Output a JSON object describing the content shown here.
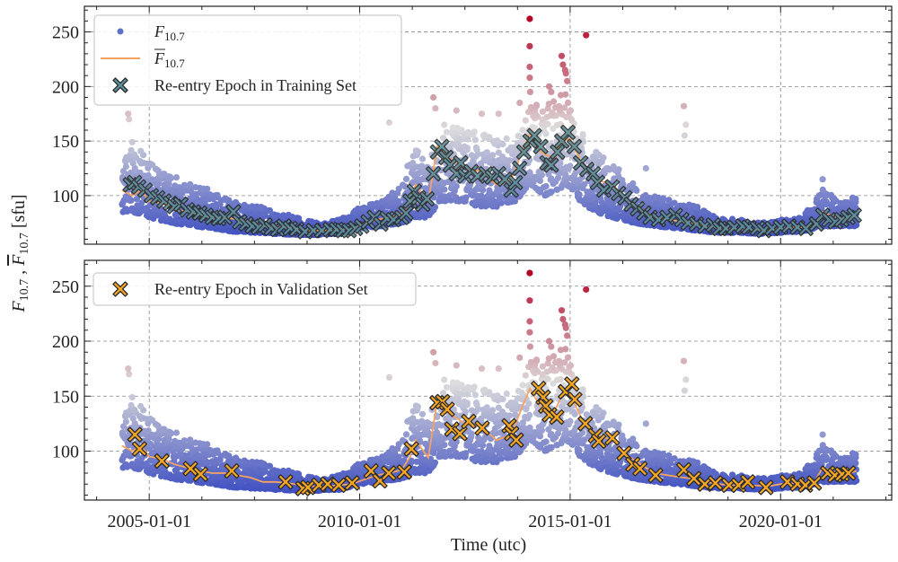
{
  "chart_data": [
    {
      "type": "scatter",
      "panel": "top",
      "xlabel": "",
      "ylabel": "F10.7 , F̄10.7 [sfu]",
      "xlim": [
        "2003-06-17",
        "2022-08-21"
      ],
      "ylim": [
        55.5,
        273.5
      ],
      "grid": true,
      "legend_placement": "top-left",
      "legend": [
        {
          "label_main": "F",
          "label_sub": "10.7",
          "marker": "dot"
        },
        {
          "label_main": "F",
          "label_sub": "10.7",
          "overline": true,
          "marker": "line",
          "color": "#f4a261"
        },
        {
          "label": "Re-entry Epoch in Training Set",
          "marker": "x",
          "color": "#5b8f99"
        }
      ],
      "series_ref": [
        "f107_daily",
        "f107_mean",
        "training_reentries"
      ]
    },
    {
      "type": "scatter",
      "panel": "bottom",
      "xlabel": "Time (utc)",
      "ylim": [
        55.5,
        273.5
      ],
      "grid": true,
      "legend_placement": "top-left",
      "legend": [
        {
          "label": "Re-entry Epoch in Validation Set",
          "marker": "x",
          "color": "#f5a623"
        }
      ],
      "series_ref": [
        "f107_daily",
        "f107_mean",
        "validation_reentries"
      ]
    }
  ],
  "axes": {
    "ylabel_main": "F",
    "ylabel_sub": "10.7",
    "ylabel_sep": " , ",
    "ylabel_unit": " [sfu]",
    "xlabel": "Time (utc)",
    "xticks": [
      {
        "year": 2005,
        "label": "2005-01-01"
      },
      {
        "year": 2010,
        "label": "2010-01-01"
      },
      {
        "year": 2015,
        "label": "2015-01-01"
      },
      {
        "year": 2020,
        "label": "2020-01-01"
      }
    ],
    "yticks": [
      100,
      150,
      200,
      250
    ]
  },
  "legend_top": {
    "f107_main": "F",
    "f107_sub": "10.7",
    "mean_main": "F",
    "mean_sub": "10.7",
    "training_label": "Re-entry Epoch in Training Set"
  },
  "legend_bottom": {
    "validation_label": "Re-entry Epoch in Validation Set"
  },
  "colors": {
    "mean_line": "#f4a261",
    "training_marker": "#5b8f99",
    "validation_marker": "#f5a623",
    "colormap_low": "#3b4cc0",
    "colormap_mid": "#dddcdc",
    "colormap_high": "#b40426"
  },
  "series": {
    "f107_daily_envelope": [
      [
        2004.35,
        85,
        135
      ],
      [
        2004.6,
        85,
        150
      ],
      [
        2005.0,
        80,
        130
      ],
      [
        2005.5,
        75,
        120
      ],
      [
        2006.0,
        72,
        110
      ],
      [
        2006.5,
        70,
        105
      ],
      [
        2007.0,
        67,
        95
      ],
      [
        2007.5,
        66,
        92
      ],
      [
        2008.0,
        65,
        85
      ],
      [
        2008.5,
        64,
        80
      ],
      [
        2009.0,
        64,
        75
      ],
      [
        2009.5,
        65,
        78
      ],
      [
        2010.0,
        70,
        90
      ],
      [
        2010.5,
        72,
        95
      ],
      [
        2011.0,
        75,
        110
      ],
      [
        2011.3,
        80,
        150
      ],
      [
        2011.6,
        80,
        125
      ],
      [
        2011.9,
        95,
        165
      ],
      [
        2012.3,
        95,
        165
      ],
      [
        2012.8,
        90,
        160
      ],
      [
        2013.3,
        90,
        155
      ],
      [
        2013.7,
        95,
        150
      ],
      [
        2014.0,
        110,
        185
      ],
      [
        2014.4,
        100,
        185
      ],
      [
        2014.9,
        110,
        195
      ],
      [
        2015.2,
        95,
        165
      ],
      [
        2015.6,
        85,
        140
      ],
      [
        2016.0,
        80,
        130
      ],
      [
        2016.5,
        75,
        110
      ],
      [
        2017.0,
        72,
        100
      ],
      [
        2017.5,
        70,
        95
      ],
      [
        2018.0,
        68,
        90
      ],
      [
        2018.5,
        66,
        80
      ],
      [
        2019.0,
        66,
        78
      ],
      [
        2019.5,
        65,
        75
      ],
      [
        2020.0,
        66,
        78
      ],
      [
        2020.5,
        67,
        80
      ],
      [
        2020.8,
        70,
        95
      ],
      [
        2021.0,
        72,
        110
      ],
      [
        2021.4,
        72,
        95
      ],
      [
        2021.8,
        72,
        100
      ]
    ],
    "f107_outliers": [
      [
        2004.5,
        175
      ],
      [
        2004.52,
        170
      ],
      [
        2010.7,
        167
      ],
      [
        2011.75,
        190
      ],
      [
        2011.8,
        180
      ],
      [
        2012.3,
        178
      ],
      [
        2012.9,
        175
      ],
      [
        2013.3,
        175
      ],
      [
        2013.8,
        185
      ],
      [
        2014.04,
        262
      ],
      [
        2014.04,
        237
      ],
      [
        2014.04,
        218
      ],
      [
        2014.04,
        208
      ],
      [
        2014.05,
        195
      ],
      [
        2014.5,
        200
      ],
      [
        2014.55,
        195
      ],
      [
        2014.8,
        228
      ],
      [
        2014.83,
        220
      ],
      [
        2014.88,
        215
      ],
      [
        2014.9,
        212
      ],
      [
        2014.93,
        205
      ],
      [
        2015.38,
        247
      ],
      [
        2017.7,
        182
      ],
      [
        2017.75,
        165
      ],
      [
        2017.72,
        155
      ],
      [
        2016.8,
        125
      ],
      [
        2021.0,
        115
      ]
    ],
    "f107_mean": [
      [
        2004.35,
        105
      ],
      [
        2004.6,
        100
      ],
      [
        2004.8,
        105
      ],
      [
        2005.0,
        95
      ],
      [
        2005.3,
        93
      ],
      [
        2005.6,
        88
      ],
      [
        2005.9,
        85
      ],
      [
        2006.2,
        82
      ],
      [
        2006.5,
        80
      ],
      [
        2006.8,
        80
      ],
      [
        2007.1,
        78
      ],
      [
        2007.4,
        76
      ],
      [
        2007.7,
        72
      ],
      [
        2008.0,
        72
      ],
      [
        2008.3,
        71
      ],
      [
        2008.6,
        69
      ],
      [
        2008.9,
        68
      ],
      [
        2009.2,
        68
      ],
      [
        2009.5,
        69
      ],
      [
        2009.8,
        70
      ],
      [
        2010.1,
        74
      ],
      [
        2010.4,
        78
      ],
      [
        2010.7,
        80
      ],
      [
        2011.0,
        83
      ],
      [
        2011.2,
        95
      ],
      [
        2011.33,
        110
      ],
      [
        2011.63,
        94
      ],
      [
        2011.84,
        145
      ],
      [
        2012.1,
        135
      ],
      [
        2012.5,
        125
      ],
      [
        2012.9,
        122
      ],
      [
        2013.25,
        110
      ],
      [
        2013.6,
        115
      ],
      [
        2014.04,
        157
      ],
      [
        2014.3,
        140
      ],
      [
        2014.6,
        134
      ],
      [
        2014.8,
        150
      ],
      [
        2015.0,
        152
      ],
      [
        2015.32,
        126
      ],
      [
        2015.6,
        115
      ],
      [
        2016.0,
        110
      ],
      [
        2016.4,
        95
      ],
      [
        2016.8,
        85
      ],
      [
        2017.0,
        80
      ],
      [
        2017.5,
        77
      ],
      [
        2017.9,
        75
      ],
      [
        2018.2,
        72
      ],
      [
        2018.5,
        70
      ],
      [
        2018.9,
        69
      ],
      [
        2019.3,
        69
      ],
      [
        2019.7,
        68
      ],
      [
        2020.0,
        70
      ],
      [
        2020.4,
        71
      ],
      [
        2020.8,
        72
      ],
      [
        2021.0,
        85
      ],
      [
        2021.5,
        78
      ],
      [
        2021.8,
        82
      ]
    ],
    "training_reentries": [
      [
        2004.55,
        110
      ],
      [
        2004.65,
        112
      ],
      [
        2004.75,
        108
      ],
      [
        2004.9,
        105
      ],
      [
        2005.05,
        100
      ],
      [
        2005.2,
        98
      ],
      [
        2005.35,
        95
      ],
      [
        2005.5,
        93
      ],
      [
        2005.6,
        90
      ],
      [
        2005.75,
        92
      ],
      [
        2005.9,
        87
      ],
      [
        2006.05,
        85
      ],
      [
        2006.2,
        84
      ],
      [
        2006.35,
        82
      ],
      [
        2006.5,
        80
      ],
      [
        2006.65,
        79
      ],
      [
        2006.8,
        80
      ],
      [
        2007.0,
        85
      ],
      [
        2007.15,
        76
      ],
      [
        2007.3,
        74
      ],
      [
        2007.45,
        72
      ],
      [
        2007.6,
        71
      ],
      [
        2007.75,
        73
      ],
      [
        2007.9,
        70
      ],
      [
        2008.05,
        69
      ],
      [
        2008.2,
        72
      ],
      [
        2008.35,
        70
      ],
      [
        2008.5,
        69
      ],
      [
        2008.7,
        67
      ],
      [
        2008.9,
        68
      ],
      [
        2009.1,
        68
      ],
      [
        2009.3,
        69
      ],
      [
        2009.45,
        69
      ],
      [
        2009.6,
        68
      ],
      [
        2009.75,
        68
      ],
      [
        2009.9,
        70
      ],
      [
        2010.05,
        72
      ],
      [
        2010.2,
        76
      ],
      [
        2010.35,
        80
      ],
      [
        2010.5,
        74
      ],
      [
        2010.65,
        79
      ],
      [
        2010.8,
        78
      ],
      [
        2011.0,
        80
      ],
      [
        2011.1,
        84
      ],
      [
        2011.2,
        95
      ],
      [
        2011.3,
        104
      ],
      [
        2011.4,
        98
      ],
      [
        2011.5,
        92
      ],
      [
        2011.6,
        97
      ],
      [
        2011.75,
        120
      ],
      [
        2011.85,
        140
      ],
      [
        2011.95,
        145
      ],
      [
        2012.05,
        135
      ],
      [
        2012.15,
        128
      ],
      [
        2012.3,
        120
      ],
      [
        2012.4,
        130
      ],
      [
        2012.5,
        118
      ],
      [
        2012.65,
        122
      ],
      [
        2012.8,
        118
      ],
      [
        2013.0,
        120
      ],
      [
        2013.15,
        117
      ],
      [
        2013.3,
        120
      ],
      [
        2013.45,
        115
      ],
      [
        2013.6,
        105
      ],
      [
        2013.7,
        112
      ],
      [
        2013.8,
        125
      ],
      [
        2013.9,
        140
      ],
      [
        2014.05,
        150
      ],
      [
        2014.15,
        155
      ],
      [
        2014.3,
        145
      ],
      [
        2014.45,
        130
      ],
      [
        2014.55,
        128
      ],
      [
        2014.7,
        140
      ],
      [
        2014.8,
        150
      ],
      [
        2014.95,
        158
      ],
      [
        2015.1,
        145
      ],
      [
        2015.25,
        130
      ],
      [
        2015.4,
        124
      ],
      [
        2015.55,
        120
      ],
      [
        2015.65,
        112
      ],
      [
        2015.8,
        105
      ],
      [
        2016.0,
        108
      ],
      [
        2016.15,
        102
      ],
      [
        2016.3,
        98
      ],
      [
        2016.45,
        92
      ],
      [
        2016.6,
        88
      ],
      [
        2016.75,
        84
      ],
      [
        2016.9,
        80
      ],
      [
        2017.1,
        78
      ],
      [
        2017.3,
        80
      ],
      [
        2017.5,
        82
      ],
      [
        2017.65,
        78
      ],
      [
        2017.8,
        75
      ],
      [
        2018.0,
        74
      ],
      [
        2018.2,
        72
      ],
      [
        2018.4,
        73
      ],
      [
        2018.55,
        70
      ],
      [
        2018.7,
        70
      ],
      [
        2018.9,
        71
      ],
      [
        2019.1,
        72
      ],
      [
        2019.25,
        71
      ],
      [
        2019.45,
        70
      ],
      [
        2019.6,
        68
      ],
      [
        2019.8,
        70
      ],
      [
        2020.0,
        71
      ],
      [
        2020.2,
        72
      ],
      [
        2020.4,
        71
      ],
      [
        2020.6,
        70
      ],
      [
        2020.85,
        74
      ],
      [
        2021.0,
        82
      ],
      [
        2021.15,
        78
      ],
      [
        2021.3,
        76
      ],
      [
        2021.45,
        78
      ],
      [
        2021.6,
        80
      ],
      [
        2021.75,
        82
      ]
    ],
    "validation_reentries": [
      [
        2004.66,
        115
      ],
      [
        2004.77,
        102
      ],
      [
        2005.3,
        91
      ],
      [
        2005.98,
        84
      ],
      [
        2006.22,
        79
      ],
      [
        2006.96,
        82
      ],
      [
        2008.24,
        72
      ],
      [
        2008.65,
        66
      ],
      [
        2008.77,
        67
      ],
      [
        2009.03,
        69
      ],
      [
        2009.24,
        70
      ],
      [
        2009.5,
        69
      ],
      [
        2009.82,
        71
      ],
      [
        2010.27,
        82
      ],
      [
        2010.48,
        73
      ],
      [
        2010.69,
        80
      ],
      [
        2011.06,
        81
      ],
      [
        2011.23,
        102
      ],
      [
        2011.84,
        144
      ],
      [
        2011.97,
        145
      ],
      [
        2012.08,
        138
      ],
      [
        2012.19,
        120
      ],
      [
        2012.38,
        116
      ],
      [
        2012.59,
        127
      ],
      [
        2012.91,
        121
      ],
      [
        2013.55,
        123
      ],
      [
        2013.61,
        116
      ],
      [
        2013.72,
        110
      ],
      [
        2014.25,
        157
      ],
      [
        2014.36,
        149
      ],
      [
        2014.42,
        141
      ],
      [
        2014.51,
        133
      ],
      [
        2014.68,
        131
      ],
      [
        2014.89,
        154
      ],
      [
        2015.04,
        161
      ],
      [
        2015.11,
        147
      ],
      [
        2015.36,
        125
      ],
      [
        2015.6,
        114
      ],
      [
        2015.68,
        109
      ],
      [
        2016.0,
        112
      ],
      [
        2016.28,
        98
      ],
      [
        2016.49,
        88
      ],
      [
        2016.66,
        84
      ],
      [
        2017.03,
        78
      ],
      [
        2017.7,
        83
      ],
      [
        2017.94,
        75
      ],
      [
        2018.2,
        70
      ],
      [
        2018.45,
        71
      ],
      [
        2018.77,
        69
      ],
      [
        2019.0,
        69
      ],
      [
        2019.22,
        72
      ],
      [
        2019.65,
        67
      ],
      [
        2020.16,
        72
      ],
      [
        2020.4,
        70
      ],
      [
        2020.59,
        69
      ],
      [
        2020.8,
        71
      ],
      [
        2021.12,
        80
      ],
      [
        2021.29,
        78
      ],
      [
        2021.46,
        79
      ],
      [
        2021.61,
        80
      ]
    ]
  }
}
